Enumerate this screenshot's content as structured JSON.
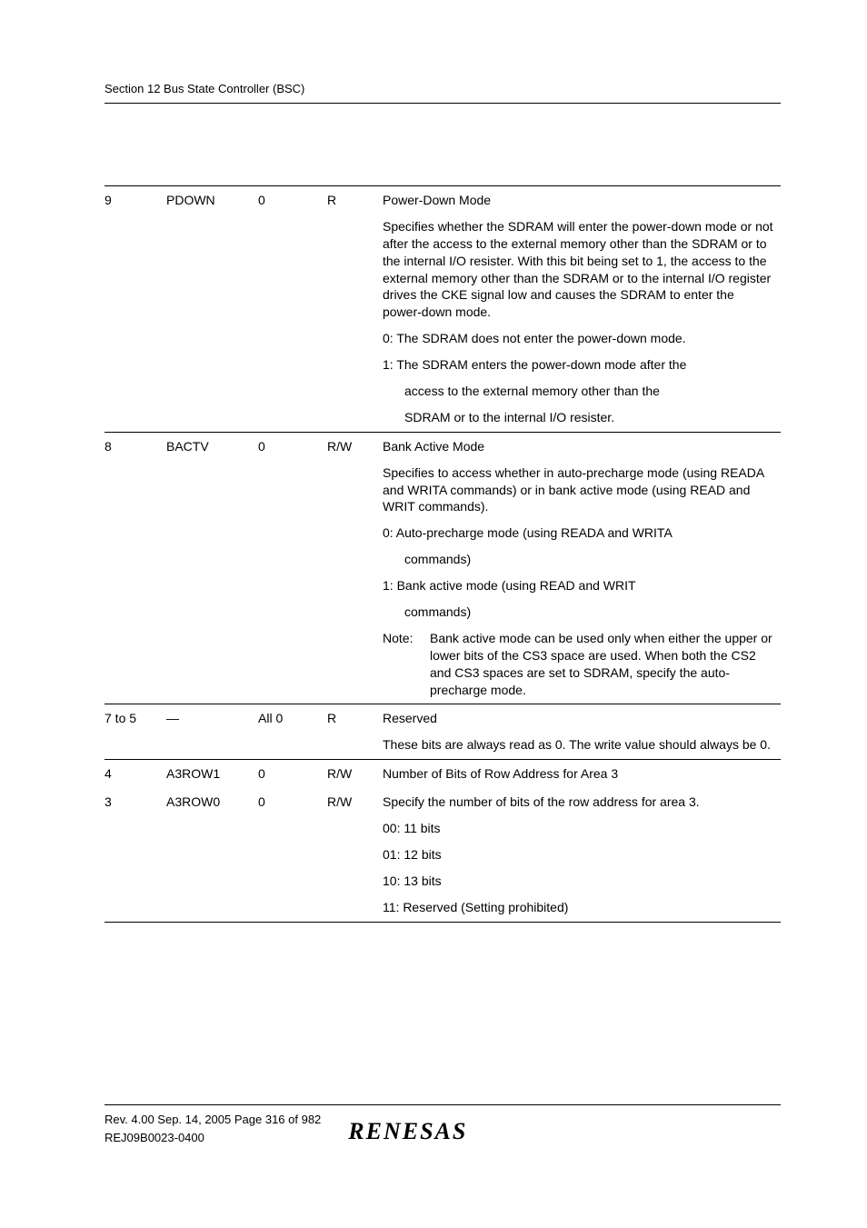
{
  "section_header": "Section 12   Bus State Controller (BSC)",
  "rows": [
    {
      "bit": "9",
      "name": "PDOWN",
      "init": "0",
      "rw": "R",
      "desc": [
        {
          "text": "Power-Down Mode"
        },
        {
          "text": "Specifies whether the SDRAM will enter the power-down mode or not after the access to the external memory other than the SDRAM or to the internal I/O resister. With this bit being set to 1, the access to the external memory other than the SDRAM or to the internal I/O register drives the CKE signal low and causes the SDRAM to enter the power-down mode."
        },
        {
          "text": "0: The SDRAM does not enter the power-down mode."
        },
        {
          "text": "1: The SDRAM enters the power-down mode after the"
        },
        {
          "text": "access to the external memory other than the",
          "indent": true
        },
        {
          "text": "SDRAM or to the internal I/O resister.",
          "indent": true
        }
      ]
    },
    {
      "bit": "8",
      "name": "BACTV",
      "init": "0",
      "rw": "R/W",
      "desc": [
        {
          "text": "Bank Active Mode"
        },
        {
          "text": "Specifies to access whether in auto-precharge mode (using READA and WRITA commands) or in bank active mode (using READ and WRIT commands)."
        },
        {
          "text": "0: Auto-precharge mode (using READA and WRITA"
        },
        {
          "text": "commands)",
          "indent": true
        },
        {
          "text": "1: Bank active mode (using READ and WRIT"
        },
        {
          "text": "commands)",
          "indent": true
        },
        {
          "note": true,
          "label": "Note:",
          "text": "Bank active mode can be used only when either the upper or lower bits of the CS3 space are used. When both the CS2 and CS3 spaces are set to SDRAM, specify the auto-precharge mode."
        }
      ]
    },
    {
      "bit": "7 to 5",
      "name": "—",
      "init": "All 0",
      "rw": "R",
      "desc": [
        {
          "text": "Reserved"
        },
        {
          "text": "These bits are always read as 0. The write value should always be 0."
        }
      ]
    },
    {
      "bit": "4",
      "name": "A3ROW1",
      "init": "0",
      "rw": "R/W",
      "desc": [
        {
          "text": "Number of Bits of Row Address for Area 3"
        }
      ]
    },
    {
      "bit": "3",
      "name": "A3ROW0",
      "init": "0",
      "rw": "R/W",
      "no_top": true,
      "desc": [
        {
          "text": "Specify the number of bits of the row address for area 3."
        },
        {
          "text": "00: 11 bits"
        },
        {
          "text": "01: 12 bits"
        },
        {
          "text": "10: 13 bits"
        },
        {
          "text": "11: Reserved (Setting prohibited)"
        }
      ],
      "bottom": true
    }
  ],
  "footer": {
    "line1": "Rev. 4.00  Sep. 14, 2005  Page 316 of 982",
    "line2": "REJ09B0023-0400",
    "logo": "RENESAS"
  }
}
